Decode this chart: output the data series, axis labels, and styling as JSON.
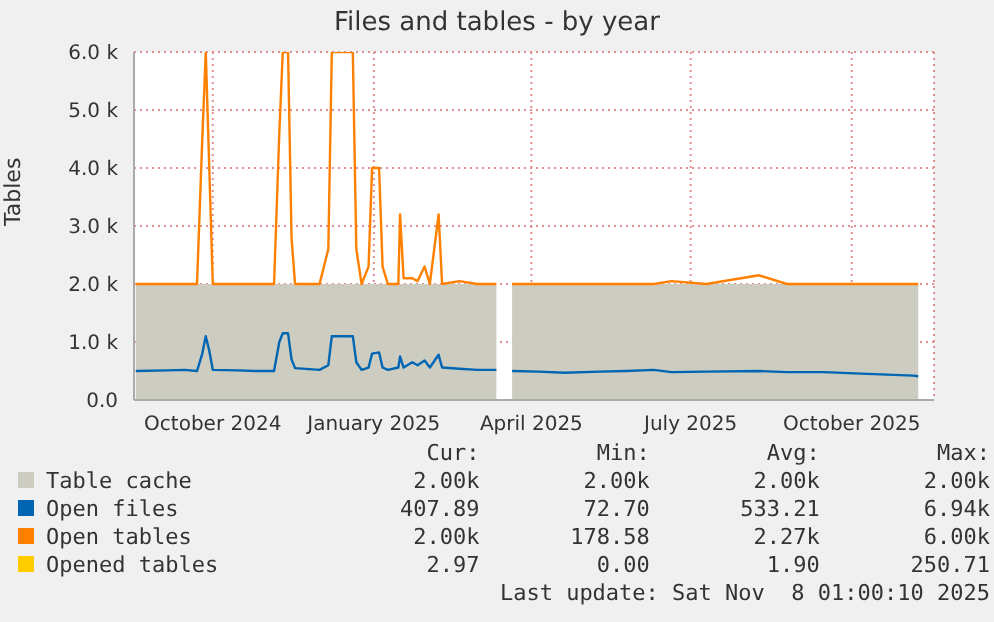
{
  "chart_data": {
    "type": "line",
    "title": "Files and tables - by year",
    "ylabel": "Tables",
    "x": [
      "2024-08-18",
      "2024-09-05",
      "2024-09-15",
      "2024-09-22",
      "2024-09-25",
      "2024-09-27",
      "2024-09-29",
      "2024-10-01",
      "2024-10-15",
      "2024-10-25",
      "2024-11-05",
      "2024-11-08",
      "2024-11-10",
      "2024-11-13",
      "2024-11-15",
      "2024-11-17",
      "2024-12-01",
      "2024-12-06",
      "2024-12-08",
      "2024-12-20",
      "2024-12-22",
      "2024-12-25",
      "2024-12-29",
      "2024-12-31",
      "2025-01-04",
      "2025-01-06",
      "2025-01-09",
      "2025-01-15",
      "2025-01-16",
      "2025-01-18",
      "2025-01-23",
      "2025-01-26",
      "2025-01-30",
      "2025-02-02",
      "2025-02-07",
      "2025-02-09",
      "2025-02-19",
      "2025-03-01",
      "2025-03-12",
      "2025-03-13",
      "2025-03-20",
      "2025-03-21",
      "2025-04-05",
      "2025-04-20",
      "2025-05-10",
      "2025-05-25",
      "2025-06-10",
      "2025-06-20",
      "2025-07-10",
      "2025-08-09",
      "2025-08-25",
      "2025-09-15",
      "2025-10-10",
      "2025-11-05",
      "2025-11-08"
    ],
    "series": [
      {
        "name": "Table cache",
        "type": "area",
        "color": "#ccccc0",
        "values": [
          2000,
          2000,
          2000,
          2000,
          2000,
          2000,
          2000,
          2000,
          2000,
          2000,
          2000,
          2000,
          2000,
          2000,
          2000,
          2000,
          2000,
          2000,
          2000,
          2000,
          2000,
          2000,
          2000,
          2000,
          2000,
          2000,
          2000,
          2000,
          2000,
          2000,
          2000,
          2000,
          2000,
          2000,
          2000,
          2000,
          2000,
          2000,
          2000,
          null,
          null,
          2000,
          2000,
          2000,
          2000,
          2000,
          2000,
          2000,
          2000,
          2000,
          2000,
          2000,
          2000,
          2000,
          2000
        ]
      },
      {
        "name": "Open files",
        "color": "#0066b3",
        "values": [
          500,
          510,
          520,
          500,
          800,
          1100,
          850,
          520,
          510,
          500,
          500,
          1000,
          1150,
          1150,
          700,
          550,
          520,
          600,
          1100,
          1100,
          650,
          520,
          560,
          800,
          820,
          560,
          520,
          560,
          750,
          560,
          650,
          600,
          680,
          560,
          780,
          560,
          540,
          520,
          520,
          null,
          null,
          500,
          490,
          470,
          490,
          500,
          520,
          480,
          490,
          500,
          480,
          480,
          450,
          420,
          410
        ]
      },
      {
        "name": "Open tables",
        "color": "#ff8000",
        "values": [
          2000,
          2000,
          2000,
          2000,
          4500,
          6000,
          4000,
          2000,
          2000,
          2000,
          2000,
          4600,
          6000,
          6000,
          2800,
          2000,
          2000,
          2600,
          6000,
          6000,
          2600,
          2000,
          2300,
          4000,
          4000,
          2300,
          2000,
          2000,
          3200,
          2100,
          2100,
          2050,
          2300,
          2000,
          3200,
          2000,
          2050,
          2000,
          2000,
          null,
          null,
          2000,
          2000,
          2000,
          2000,
          2000,
          2000,
          2050,
          2000,
          2150,
          2000,
          2000,
          2000,
          2000,
          2000
        ]
      },
      {
        "name": "Opened tables",
        "color": "#ffcc00",
        "values": [
          null,
          null,
          null,
          null,
          null,
          null,
          null,
          null,
          null,
          null,
          null,
          null,
          null,
          null,
          null,
          null,
          null,
          null,
          null,
          null,
          null,
          null,
          null,
          null,
          null,
          null,
          null,
          null,
          null,
          null,
          null,
          null,
          null,
          null,
          null,
          null,
          null,
          null,
          null,
          null,
          null,
          null,
          null,
          null,
          null,
          null,
          null,
          null,
          null,
          null,
          null,
          null,
          null,
          null,
          null
        ]
      }
    ],
    "xlim": [
      "2024-08-17",
      "2025-11-17"
    ],
    "xticks": [
      {
        "value": "2024-10-01",
        "label": "October 2024"
      },
      {
        "value": "2025-01-01",
        "label": "January 2025"
      },
      {
        "value": "2025-04-01",
        "label": "April 2025"
      },
      {
        "value": "2025-07-01",
        "label": "July 2025"
      },
      {
        "value": "2025-10-01",
        "label": "October 2025"
      }
    ],
    "ylim": [
      0,
      6000
    ],
    "yticks": [
      {
        "value": 0,
        "label": "0.0"
      },
      {
        "value": 1000,
        "label": "1.0 k"
      },
      {
        "value": 2000,
        "label": "2.0 k"
      },
      {
        "value": 3000,
        "label": "3.0 k"
      },
      {
        "value": 4000,
        "label": "4.0 k"
      },
      {
        "value": 5000,
        "label": "5.0 k"
      },
      {
        "value": 6000,
        "label": "6.0 k"
      }
    ],
    "grid": true,
    "legend": "bottom",
    "annotations": [
      "Cur:",
      "Min:",
      "Avg:",
      "Max:",
      "2.00k",
      "2.00k",
      "2.00k",
      "2.00k",
      "407.89",
      "72.70",
      "533.21",
      "6.94k",
      "2.00k",
      "178.58",
      "2.27k",
      "6.00k",
      "2.97",
      "0.00",
      "1.90",
      "250.71",
      "Last update: Sat Nov  8 01:00:10 2025"
    ]
  }
}
